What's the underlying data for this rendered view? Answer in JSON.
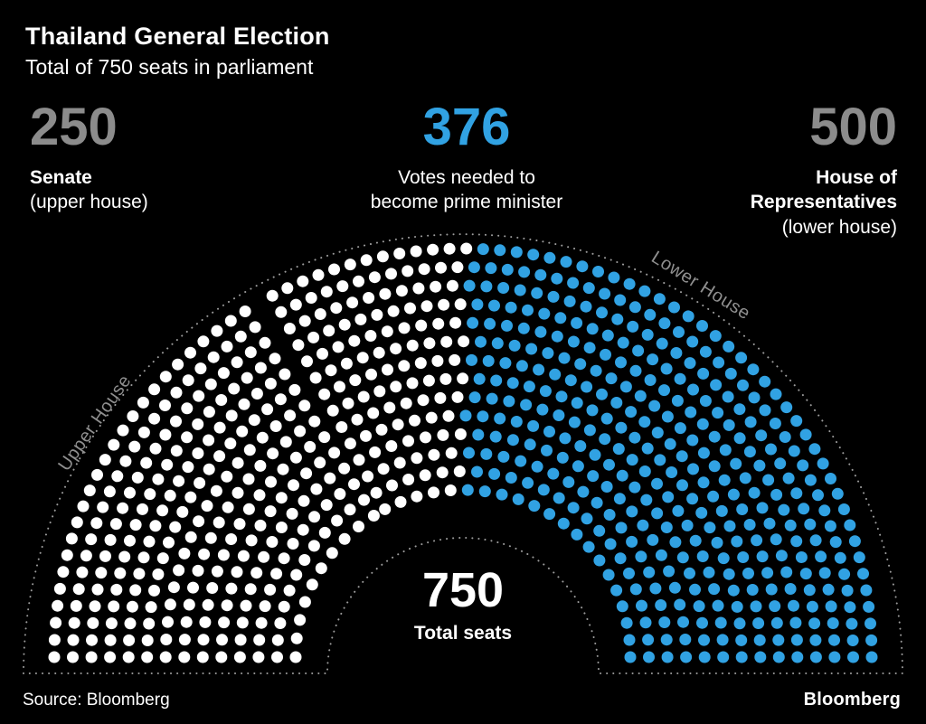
{
  "header": {
    "title": "Thailand General Election",
    "subtitle": "Total of 750 seats in parliament"
  },
  "stats": {
    "senate": {
      "value": "250",
      "label": "Senate",
      "sublabel": "(upper house)"
    },
    "votes": {
      "value": "376",
      "label_line1": "Votes needed to",
      "label_line2": "become prime minister"
    },
    "house": {
      "value": "500",
      "label_line1": "House of",
      "label_line2": "Representatives",
      "sublabel": "(lower house)"
    }
  },
  "chart_data": {
    "type": "parliament",
    "title": "Thailand General Election",
    "subtitle": "Total of 750 seats in parliament",
    "total_seats": 750,
    "arc_degrees": 180,
    "rows": 14,
    "sections": [
      {
        "name": "Senate",
        "description": "upper house",
        "seats": 250,
        "arc_label": "Upper House"
      },
      {
        "name": "House of Representatives",
        "description": "lower house",
        "seats": 500,
        "arc_label": "Lower House"
      }
    ],
    "highlight": {
      "seats": 376,
      "meaning": "Votes needed to become prime minister",
      "color": "#31a2e3"
    },
    "seat_color_default": "#ffffff",
    "center_label": {
      "value": "750",
      "caption": "Total seats"
    }
  },
  "colors": {
    "background": "#000000",
    "accent_blue": "#31a2e3",
    "stat_gray": "#8c8c8c",
    "arc_label_gray": "#8f8f8f",
    "outline_gray": "#9b9b9b"
  },
  "footer": {
    "source": "Source: Bloomberg",
    "brand": "Bloomberg"
  }
}
